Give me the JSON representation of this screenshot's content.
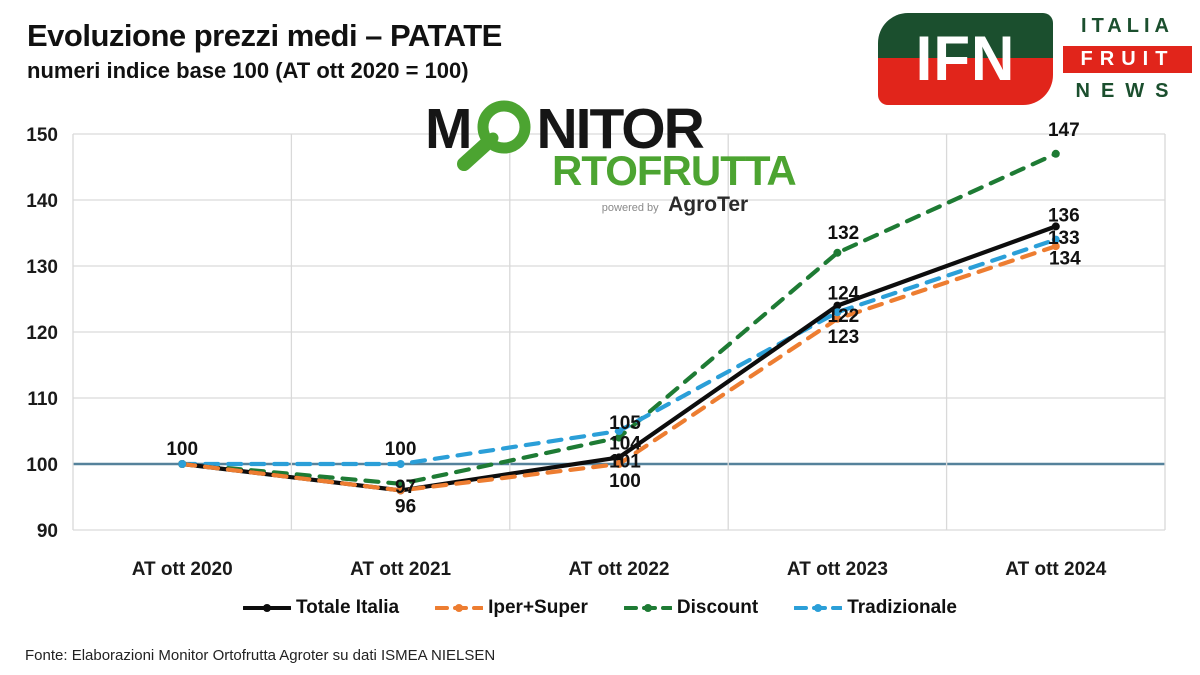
{
  "header": {
    "title": "Evoluzione prezzi medi – PATATE",
    "subtitle": "numeri indice base 100 (AT ott 2020  = 100)"
  },
  "logos": {
    "ifn": {
      "acronym": "IFN",
      "words": [
        "ITALIA",
        "FRUIT",
        "NEWS"
      ],
      "green": "#1b4f2e",
      "red": "#e1251b"
    },
    "monitor": {
      "word_start": "M",
      "word_end": "NITOR",
      "line2": "RTOFRUTTA",
      "powered_by": "powered by",
      "brand": "AgroTer",
      "green": "#4CA431"
    }
  },
  "chart_data": {
    "type": "line",
    "categories": [
      "AT ott 2020",
      "AT ott 2021",
      "AT ott 2022",
      "AT ott 2023",
      "AT ott 2024"
    ],
    "series": [
      {
        "name": "Totale Italia",
        "color": "#0d0d0d",
        "dash": "solid",
        "values": [
          100,
          96,
          101,
          124,
          136
        ]
      },
      {
        "name": "Iper+Super",
        "color": "#ED7D31",
        "dash": "dashed",
        "values": [
          100,
          96,
          100,
          122,
          133
        ]
      },
      {
        "name": "Discount",
        "color": "#1E7B34",
        "dash": "dashed",
        "values": [
          100,
          97,
          104,
          132,
          147
        ]
      },
      {
        "name": "Tradizionale",
        "color": "#2B9FD8",
        "dash": "dashed",
        "values": [
          100,
          100,
          105,
          123,
          134
        ]
      }
    ],
    "ylim": [
      90,
      150
    ],
    "ytick_step": 10,
    "baseline": 100,
    "baseline_color": "#55829B",
    "grid": true,
    "gridline_color": "#d9d9d9",
    "legend_position": "bottom"
  },
  "footer": {
    "source": "Fonte: Elaborazioni Monitor Ortofrutta Agroter su dati ISMEA NIELSEN"
  }
}
